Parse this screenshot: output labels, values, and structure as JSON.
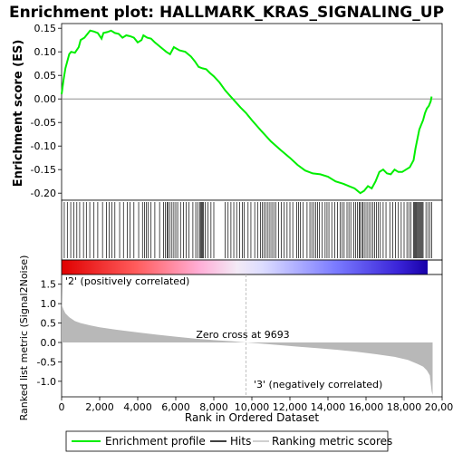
{
  "title": "Enrichment plot: HALLMARK_KRAS_SIGNALING_UP",
  "chart_data": [
    {
      "type": "line",
      "panel": "enrichment",
      "ylabel": "Enrichment score (ES)",
      "ylim": [
        -0.215,
        0.16
      ],
      "yticks": [
        0.15,
        0.1,
        0.05,
        0.0,
        -0.05,
        -0.1,
        -0.15,
        -0.2
      ],
      "ytick_labels": [
        "0.15",
        "0.10",
        "0.05",
        "0.00",
        "-0.05",
        "-0.10",
        "-0.15",
        "-0.20"
      ],
      "xlim": [
        0,
        20000
      ],
      "line_color": "#00ee00",
      "series": [
        {
          "name": "Enrichment profile",
          "x": [
            0,
            100,
            200,
            300,
            400,
            500,
            700,
            900,
            1000,
            1200,
            1400,
            1500,
            1700,
            1900,
            2100,
            2200,
            2400,
            2600,
            2800,
            3000,
            3200,
            3400,
            3600,
            3800,
            4000,
            4200,
            4300,
            4500,
            4700,
            4900,
            5200,
            5500,
            5700,
            5900,
            6200,
            6500,
            6800,
            7000,
            7200,
            7400,
            7600,
            7800,
            8000,
            8300,
            8600,
            9000,
            9400,
            9693,
            10000,
            10500,
            11000,
            11500,
            12000,
            12400,
            12800,
            13200,
            13600,
            14000,
            14400,
            14800,
            15100,
            15400,
            15700,
            15900,
            16100,
            16300,
            16500,
            16700,
            16900,
            17100,
            17300,
            17500,
            17700,
            17900,
            18100,
            18300,
            18500,
            18600,
            18700,
            18800,
            18900,
            19000,
            19100,
            19200,
            19300,
            19400,
            19450
          ],
          "y": [
            0.01,
            0.04,
            0.065,
            0.08,
            0.095,
            0.1,
            0.098,
            0.11,
            0.125,
            0.13,
            0.14,
            0.145,
            0.143,
            0.14,
            0.128,
            0.14,
            0.142,
            0.145,
            0.14,
            0.138,
            0.13,
            0.135,
            0.133,
            0.13,
            0.12,
            0.125,
            0.135,
            0.13,
            0.128,
            0.12,
            0.11,
            0.1,
            0.095,
            0.11,
            0.103,
            0.1,
            0.09,
            0.08,
            0.068,
            0.065,
            0.063,
            0.055,
            0.048,
            0.035,
            0.018,
            0.0,
            -0.018,
            -0.03,
            -0.045,
            -0.068,
            -0.09,
            -0.108,
            -0.125,
            -0.14,
            -0.152,
            -0.158,
            -0.16,
            -0.165,
            -0.175,
            -0.18,
            -0.185,
            -0.19,
            -0.2,
            -0.195,
            -0.185,
            -0.19,
            -0.175,
            -0.155,
            -0.15,
            -0.158,
            -0.16,
            -0.15,
            -0.155,
            -0.155,
            -0.15,
            -0.145,
            -0.13,
            -0.105,
            -0.085,
            -0.065,
            -0.055,
            -0.045,
            -0.03,
            -0.02,
            -0.015,
            -0.005,
            0.005
          ]
        }
      ]
    },
    {
      "type": "scatter",
      "panel": "hits",
      "legend": "Hits",
      "hits": [
        140,
        300,
        480,
        650,
        800,
        950,
        1150,
        1300,
        1480,
        1700,
        1900,
        2150,
        2350,
        2500,
        2650,
        2800,
        3050,
        3250,
        3450,
        3600,
        3800,
        4050,
        4250,
        4350,
        4450,
        4550,
        4700,
        4900,
        5150,
        5350,
        5450,
        5550,
        5600,
        5700,
        5800,
        5900,
        6000,
        6100,
        6250,
        6400,
        6550,
        6700,
        6900,
        7050,
        7150,
        7250,
        7300,
        7350,
        7400,
        7450,
        7550,
        7700,
        7850,
        8000,
        8600,
        8750,
        8900,
        9050,
        9200,
        9350,
        9500,
        9600,
        9800,
        9950,
        10150,
        10300,
        10450,
        10550,
        10650,
        10750,
        10850,
        10950,
        11050,
        11150,
        11250,
        11400,
        11550,
        11700,
        11850,
        12000,
        12150,
        12350,
        12450,
        12550,
        12700,
        12900,
        13050,
        13150,
        13250,
        13350,
        13450,
        13550,
        13700,
        13850,
        13950,
        14050,
        14200,
        14350,
        14500,
        14650,
        14750,
        14850,
        15000,
        15100,
        15200,
        15350,
        15450,
        15550,
        15650,
        15700,
        15800,
        15850,
        15950,
        16050,
        16150,
        16250,
        16350,
        16450,
        16550,
        16650,
        16750,
        16900,
        17050,
        17250,
        17400,
        17550,
        17700,
        17850,
        18000,
        18150,
        18250,
        18350,
        18500,
        18550,
        18600,
        18650,
        18700,
        18750,
        18800,
        18850,
        18900,
        18950,
        19000,
        19150,
        19250,
        19350,
        19450
      ]
    },
    {
      "type": "area",
      "panel": "ranked_list",
      "ylabel": "Ranked list metric (Signal2Noise)",
      "xlabel": "Rank in Ordered Dataset",
      "xlim": [
        0,
        20000
      ],
      "xticks": [
        0,
        2000,
        4000,
        6000,
        8000,
        10000,
        12000,
        14000,
        16000,
        18000,
        20000
      ],
      "xtick_labels": [
        "0",
        "2,000",
        "4,000",
        "6,000",
        "8,000",
        "10,000",
        "12,000",
        "14,000",
        "16,000",
        "18,000",
        "20,000"
      ],
      "ylim": [
        -1.4,
        1.75
      ],
      "yticks": [
        1.5,
        1.0,
        0.5,
        0.0,
        -0.5,
        -1.0
      ],
      "ytick_labels": [
        "1.5",
        "1.0",
        "0.5",
        "0.0",
        "-0.5",
        "-1.0"
      ],
      "zero_cross": 9693,
      "x": [
        0,
        20,
        100,
        200,
        400,
        700,
        1000,
        1500,
        2000,
        3000,
        4000,
        5000,
        6000,
        7000,
        8000,
        9000,
        9693,
        10500,
        11500,
        12500,
        13500,
        14500,
        15500,
        16500,
        17500,
        18200,
        18700,
        19000,
        19200,
        19350,
        19450,
        19500
      ],
      "y": [
        1.5,
        0.95,
        0.85,
        0.75,
        0.65,
        0.55,
        0.5,
        0.44,
        0.39,
        0.32,
        0.26,
        0.2,
        0.15,
        0.1,
        0.06,
        0.03,
        0.0,
        -0.03,
        -0.07,
        -0.11,
        -0.15,
        -0.19,
        -0.24,
        -0.3,
        -0.37,
        -0.45,
        -0.55,
        -0.62,
        -0.72,
        -0.85,
        -1.25,
        -1.35
      ]
    }
  ],
  "labels": {
    "positive": "'2' (positively correlated)",
    "negative": "'3' (negatively correlated)",
    "zero_cross": "Zero cross at 9693"
  },
  "legend": {
    "enrichment": "Enrichment profile",
    "hits": "Hits",
    "ranking": "Ranking metric scores"
  },
  "colors": {
    "enrichment": "#00ee00",
    "hits": "#000000",
    "ranking": "#c0c0c0",
    "positive_label": "#ff0000",
    "negative_label": "#0000ff",
    "zero_line": "#c0c0c0"
  }
}
